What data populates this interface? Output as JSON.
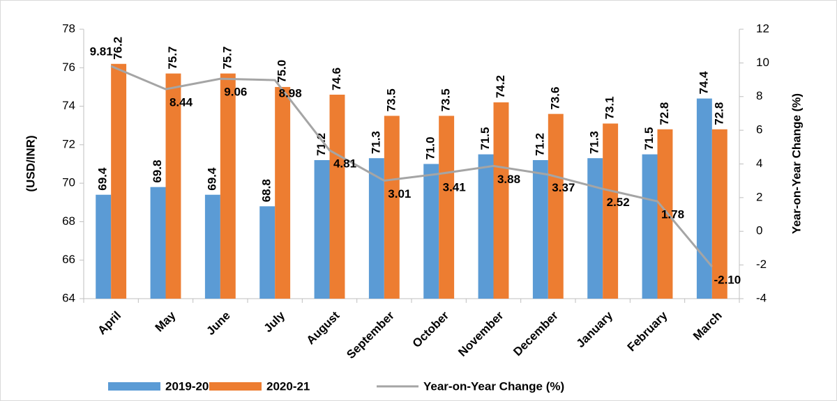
{
  "chart_data": {
    "type": "bar",
    "y_label": "(USD/INR)",
    "y2_label": "Year-on-Year Change (%)",
    "categories": [
      "April",
      "May",
      "June",
      "July",
      "August",
      "September",
      "October",
      "November",
      "December",
      "January",
      "February",
      "March"
    ],
    "series": [
      {
        "name": "2019-20",
        "color": "#5b9bd5",
        "values": [
          69.4,
          69.8,
          69.4,
          68.8,
          71.2,
          71.3,
          71.0,
          71.5,
          71.2,
          71.3,
          71.5,
          74.4
        ],
        "value_labels": [
          "69.4",
          "69.8",
          "69.4",
          "68.8",
          "71.2",
          "71.3",
          "71.0",
          "71.5",
          "71.2",
          "71.3",
          "71.5",
          "74.4"
        ]
      },
      {
        "name": "2020-21",
        "color": "#ed7d31",
        "values": [
          76.2,
          75.7,
          75.7,
          75.0,
          74.6,
          73.5,
          73.5,
          74.2,
          73.6,
          73.1,
          72.8,
          72.8
        ],
        "value_labels": [
          "76.2",
          "75.7",
          "75.7",
          "75.0",
          "74.6",
          "73.5",
          "73.5",
          "74.2",
          "73.6",
          "73.1",
          "72.8",
          "72.8"
        ]
      },
      {
        "name": "Year-on-Year Change (%)",
        "type": "line",
        "axis": "y2",
        "color": "#a5a5a5",
        "label_color": "#1fb24a",
        "values": [
          9.81,
          8.44,
          9.06,
          8.98,
          4.81,
          3.01,
          3.41,
          3.88,
          3.37,
          2.52,
          1.78,
          -2.1
        ],
        "value_labels": [
          "9.81",
          "8.44",
          "9.06",
          "8.98",
          "4.81",
          "3.01",
          "3.41",
          "3.88",
          "3.37",
          "2.52",
          "1.78",
          "-2.10"
        ]
      }
    ],
    "ylim": [
      64,
      78
    ],
    "yticks": [
      64,
      66,
      68,
      70,
      72,
      74,
      76,
      78
    ],
    "y2lim": [
      -4,
      12
    ],
    "y2ticks": [
      -4,
      -2,
      0,
      2,
      4,
      6,
      8,
      10,
      12
    ],
    "legend": "bottom",
    "grid": false
  }
}
